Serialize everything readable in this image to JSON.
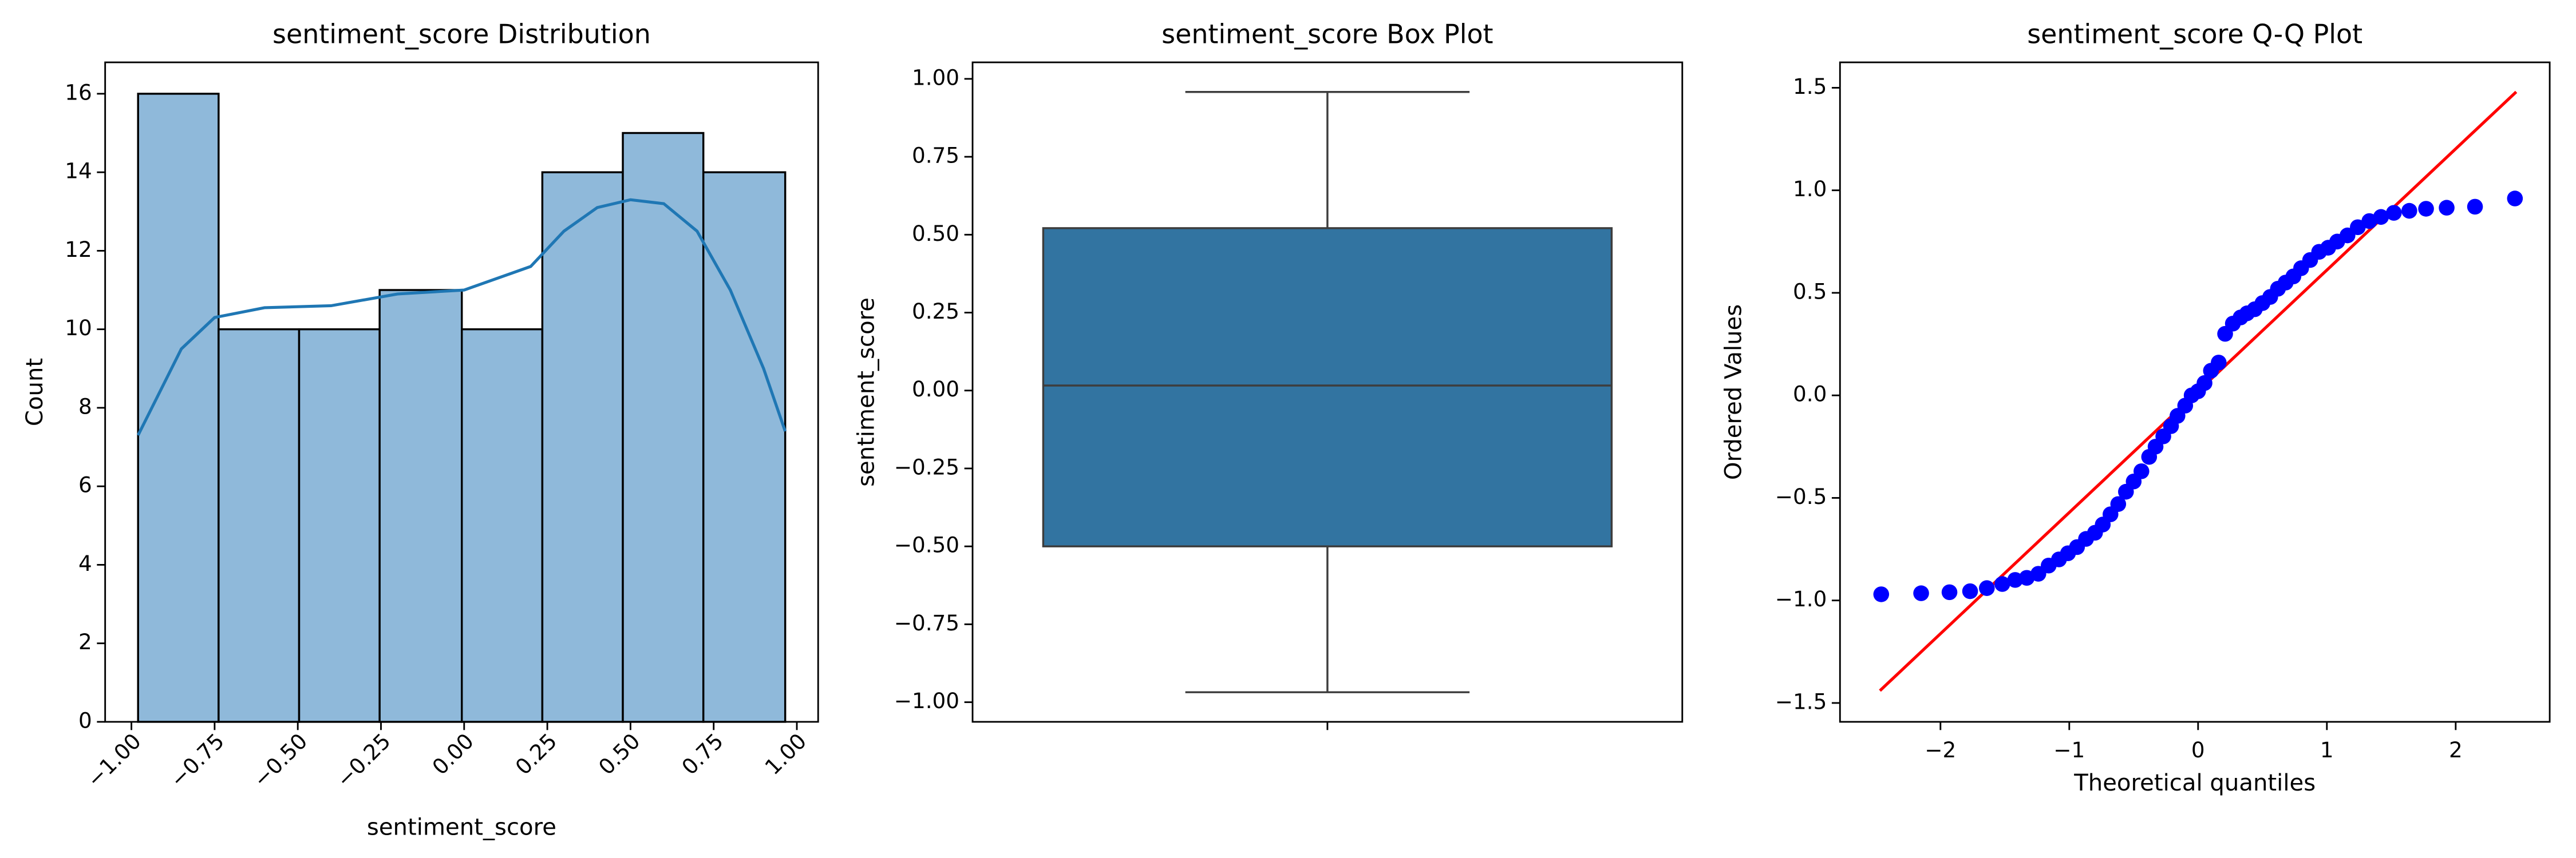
{
  "chart_data": [
    {
      "type": "histogram",
      "title": "sentiment_score Distribution",
      "xlabel": "sentiment_score",
      "ylabel": "Count",
      "bins": [
        -0.98,
        -0.738,
        -0.496,
        -0.254,
        -0.007,
        0.235,
        0.477,
        0.719,
        0.965
      ],
      "counts": [
        16,
        10,
        10,
        11,
        10,
        14,
        15,
        14
      ],
      "color": "#8fb9da",
      "edgecolor": "#000000",
      "kde": {
        "x": [
          -0.98,
          -0.85,
          -0.75,
          -0.6,
          -0.4,
          -0.2,
          0,
          0.2,
          0.3,
          0.4,
          0.5,
          0.6,
          0.7,
          0.8,
          0.9,
          0.965
        ],
        "y": [
          7.3,
          9.5,
          10.3,
          10.55,
          10.6,
          10.9,
          11.0,
          11.6,
          12.5,
          13.1,
          13.3,
          13.2,
          12.5,
          11.0,
          9.0,
          7.4
        ],
        "color": "#1f77b4"
      },
      "xlim": [
        -1.079,
        1.064
      ],
      "ylim": [
        0,
        16.8
      ],
      "xticks": [
        {
          "value": -1,
          "label": "−1.00"
        },
        {
          "value": -0.75,
          "label": "−0.75"
        },
        {
          "value": -0.5,
          "label": "−0.50"
        },
        {
          "value": -0.25,
          "label": "−0.25"
        },
        {
          "value": 0,
          "label": "0.00"
        },
        {
          "value": 0.25,
          "label": "0.25"
        },
        {
          "value": 0.5,
          "label": "0.50"
        },
        {
          "value": 0.75,
          "label": "0.75"
        },
        {
          "value": 1,
          "label": "1.00"
        }
      ],
      "xtick_rotation": 45,
      "yticks": [
        0,
        2,
        4,
        6,
        8,
        10,
        12,
        14,
        16
      ]
    },
    {
      "type": "box",
      "title": "sentiment_score Box Plot",
      "ylabel": "sentiment_score",
      "categories": [
        null
      ],
      "box": {
        "whislo": -0.968,
        "q1": -0.5,
        "median": 0.016,
        "q3": 0.521,
        "whishi": 0.958
      },
      "color": "#3274a1",
      "ylim": [
        -1.063,
        1.053
      ],
      "yticks": [
        {
          "value": -1,
          "label": "−1.00"
        },
        {
          "value": -0.75,
          "label": "−0.75"
        },
        {
          "value": -0.5,
          "label": "−0.50"
        },
        {
          "value": -0.25,
          "label": "−0.25"
        },
        {
          "value": 0,
          "label": "0.00"
        },
        {
          "value": 0.25,
          "label": "0.25"
        },
        {
          "value": 0.5,
          "label": "0.50"
        },
        {
          "value": 0.75,
          "label": "0.75"
        },
        {
          "value": 1,
          "label": "1.00"
        }
      ]
    },
    {
      "type": "scatter",
      "title": "sentiment_score Q-Q Plot",
      "xlabel": "Theoretical quantiles",
      "ylabel": "Ordered Values",
      "series": [
        {
          "color": "#0000ff",
          "x": [
            -2.46,
            -2.15,
            -1.93,
            -1.77,
            -1.64,
            -1.52,
            -1.42,
            -1.33,
            -1.24,
            -1.16,
            -1.08,
            -1.01,
            -0.94,
            -0.87,
            -0.8,
            -0.74,
            -0.68,
            -0.62,
            -0.56,
            -0.5,
            -0.44,
            -0.38,
            -0.33,
            -0.27,
            -0.21,
            -0.16,
            -0.1,
            -0.05,
            0.0,
            0.05,
            0.1,
            0.16,
            0.21,
            0.27,
            0.33,
            0.38,
            0.44,
            0.5,
            0.56,
            0.62,
            0.68,
            0.74,
            0.8,
            0.87,
            0.94,
            1.01,
            1.08,
            1.16,
            1.24,
            1.33,
            1.42,
            1.52,
            1.64,
            1.77,
            1.93,
            2.15,
            2.46
          ],
          "values": [
            -0.97,
            -0.965,
            -0.96,
            -0.955,
            -0.94,
            -0.92,
            -0.9,
            -0.89,
            -0.87,
            -0.83,
            -0.8,
            -0.77,
            -0.74,
            -0.7,
            -0.67,
            -0.63,
            -0.58,
            -0.53,
            -0.47,
            -0.42,
            -0.37,
            -0.3,
            -0.25,
            -0.2,
            -0.15,
            -0.1,
            -0.05,
            0.0,
            0.02,
            0.06,
            0.12,
            0.16,
            0.3,
            0.35,
            0.38,
            0.4,
            0.42,
            0.45,
            0.48,
            0.52,
            0.55,
            0.58,
            0.62,
            0.66,
            0.7,
            0.72,
            0.75,
            0.78,
            0.82,
            0.85,
            0.87,
            0.89,
            0.9,
            0.91,
            0.915,
            0.92,
            0.96
          ]
        }
      ],
      "fit_line": {
        "x": [
          -2.47,
          2.47
        ],
        "y": [
          -1.44,
          1.48
        ],
        "color": "#ff0000"
      },
      "xlim": [
        -2.78,
        2.73
      ],
      "ylim": [
        -1.592,
        1.624
      ],
      "xticks": [
        {
          "value": -2,
          "label": "−2"
        },
        {
          "value": -1,
          "label": "−1"
        },
        0,
        1,
        2
      ],
      "yticks": [
        {
          "value": -1.5,
          "label": "−1.5"
        },
        {
          "value": -1,
          "label": "−1.0"
        },
        {
          "value": -0.5,
          "label": "−0.5"
        },
        {
          "value": 0,
          "label": "0.0"
        },
        {
          "value": 0.5,
          "label": "0.5"
        },
        {
          "value": 1,
          "label": "1.0"
        },
        {
          "value": 1.5,
          "label": "1.5"
        }
      ]
    }
  ]
}
